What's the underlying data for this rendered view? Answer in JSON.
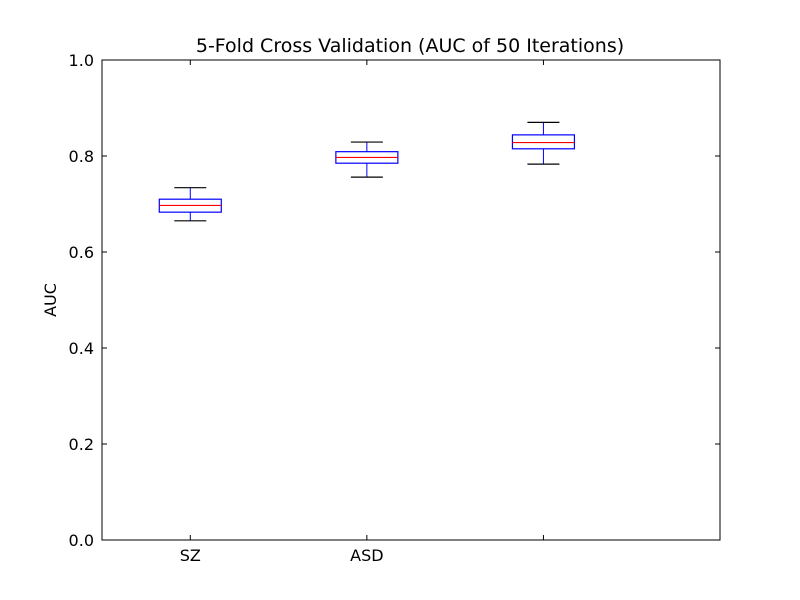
{
  "chart_data": {
    "type": "box",
    "title": "5-Fold Cross Validation (AUC of 50 Iterations)",
    "xlabel": "",
    "ylabel": "AUC",
    "ylim": [
      0.0,
      1.0
    ],
    "yticks": [
      "0.0",
      "0.2",
      "0.4",
      "0.6",
      "0.8",
      "1.0"
    ],
    "grid": false,
    "categories": [
      "SZ",
      "ASD",
      ""
    ],
    "boxes": [
      {
        "label": "SZ",
        "whisker_low": 0.665,
        "q1": 0.683,
        "median": 0.697,
        "q3": 0.71,
        "whisker_high": 0.734
      },
      {
        "label": "ASD",
        "whisker_low": 0.756,
        "q1": 0.785,
        "median": 0.797,
        "q3": 0.809,
        "whisker_high": 0.829
      },
      {
        "label": "",
        "whisker_low": 0.783,
        "q1": 0.815,
        "median": 0.828,
        "q3": 0.844,
        "whisker_high": 0.87
      }
    ],
    "colors": {
      "box": "#0000ff",
      "median": "#ff0000",
      "whisker": "#0000ff",
      "cap": "#000000",
      "axes": "#000000"
    }
  }
}
